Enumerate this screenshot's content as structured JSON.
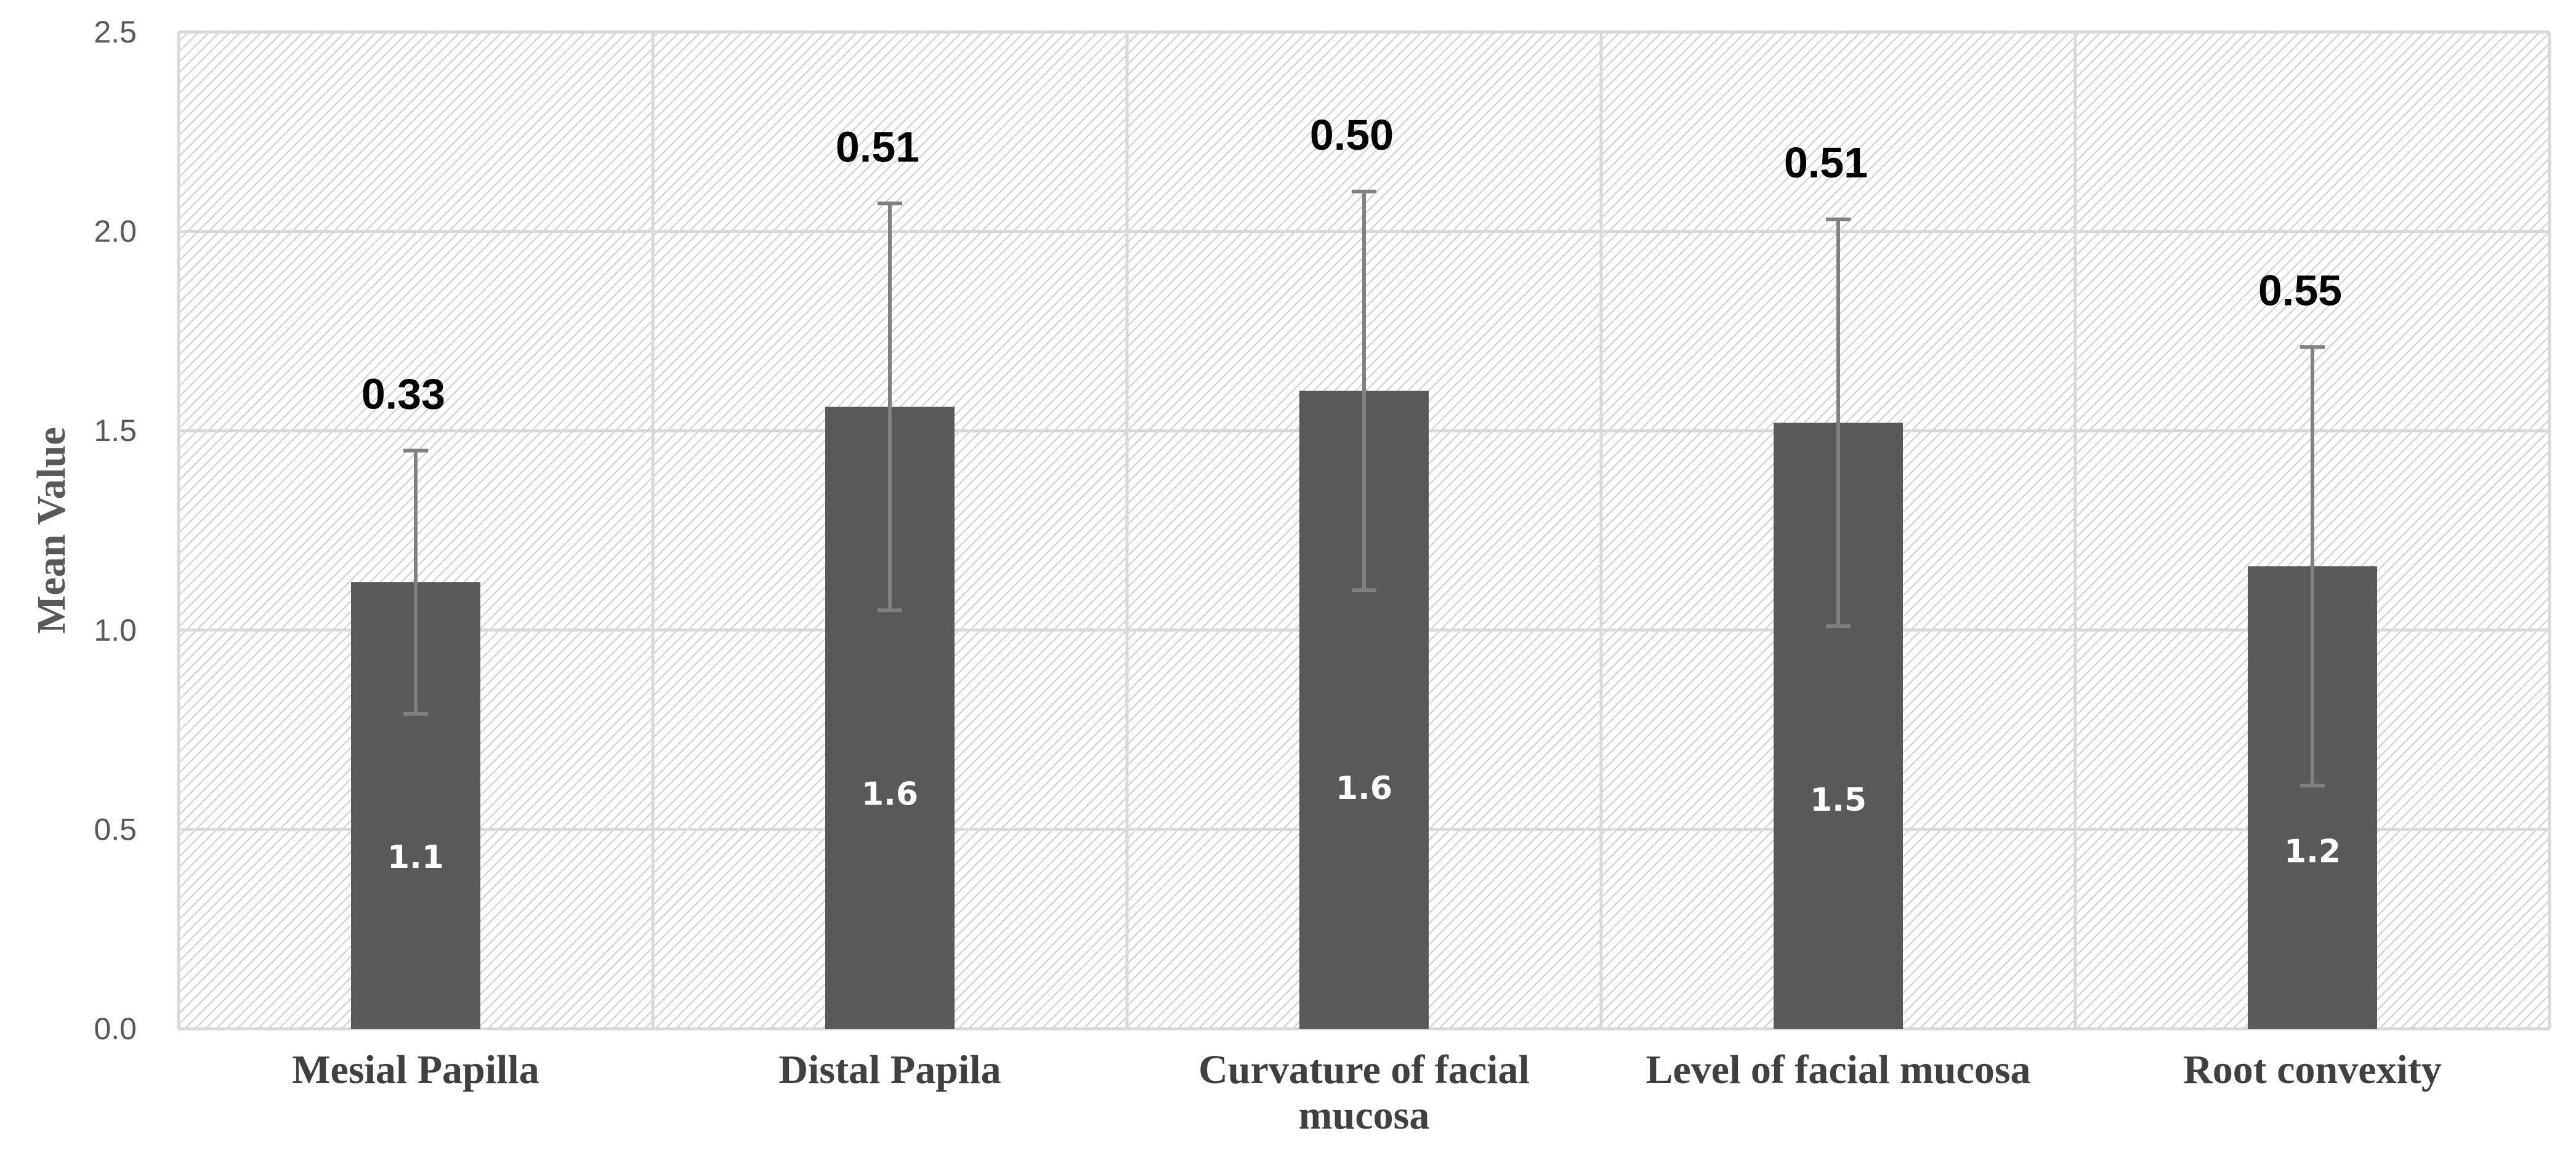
{
  "chart_data": {
    "type": "bar",
    "title": "",
    "xlabel": "",
    "ylabel": "Mean  Value",
    "ylim": [
      0,
      2.5
    ],
    "yticks": [
      0,
      0.5,
      1.0,
      1.5,
      2.0,
      2.5
    ],
    "ytick_labels": [
      "0.0",
      "0.5",
      "1.0",
      "1.5",
      "2.0",
      "2.5"
    ],
    "grid": true,
    "categories": [
      [
        "Mesial Papilla"
      ],
      [
        "Distal Papila"
      ],
      [
        "Curvature of facial",
        "mucosa"
      ],
      [
        "Level of facial mucosa"
      ],
      [
        "Root convexity"
      ]
    ],
    "values": [
      1.12,
      1.56,
      1.6,
      1.52,
      1.16
    ],
    "value_labels": [
      "1.1",
      "1.6",
      "1.6",
      "1.5",
      "1.2"
    ],
    "error": [
      0.33,
      0.51,
      0.5,
      0.51,
      0.55
    ],
    "error_labels": [
      "0.33",
      "0.51",
      "0.50",
      "0.51",
      "0.55"
    ],
    "colors": {
      "bar": "#595959",
      "error_bar": "#808080",
      "grid": "#d9d9d9",
      "hatch": "#d0d0d0",
      "plot_bg": "#ffffff"
    }
  }
}
